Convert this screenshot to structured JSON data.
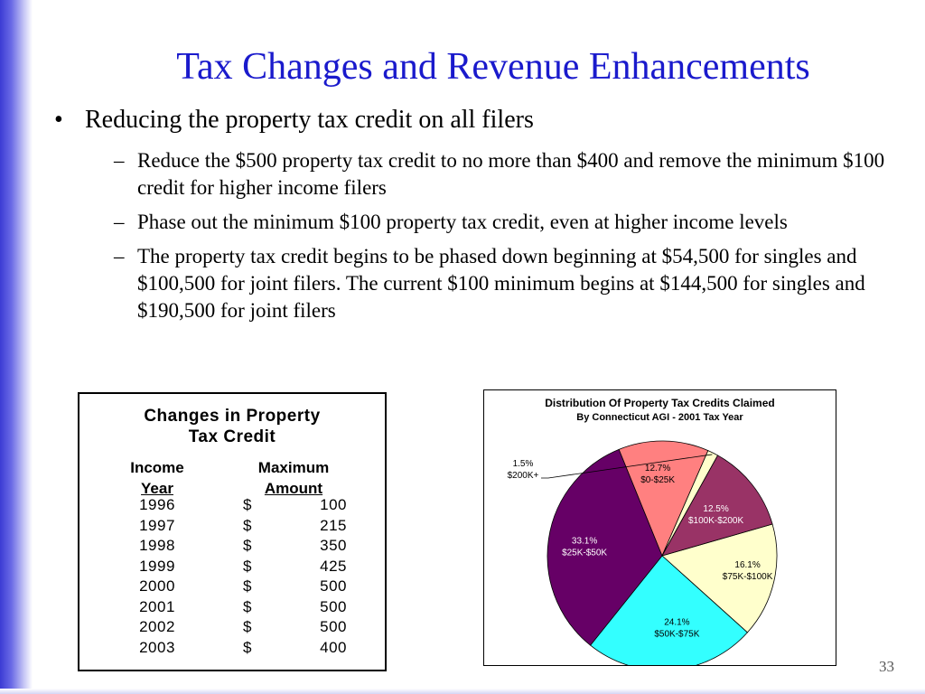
{
  "title": "Tax Changes and Revenue Enhancements",
  "bullet": {
    "symbol": "•",
    "text": "Reducing the property tax credit on all filers"
  },
  "sub_bullets": [
    {
      "dash": "–",
      "text": "Reduce the $500 property tax credit to no more than $400 and remove the minimum $100 credit for higher income filers"
    },
    {
      "dash": "–",
      "text": "Phase out the minimum $100 property tax credit, even at higher income levels"
    },
    {
      "dash": "–",
      "text": "The property tax credit begins to be phased down beginning at $54,500 for singles and $100,500 for joint filers.  The current $100 minimum begins at $144,500 for singles and $190,500 for joint filers"
    }
  ],
  "table": {
    "title": "Changes in Property Tax Credit",
    "col1_head_top": "Income",
    "col1_head_bottom": "Year",
    "col2_head_top": "Maximum",
    "col2_head_bottom": "Amount",
    "currency": "$",
    "rows": [
      {
        "year": "1996",
        "amount": "100"
      },
      {
        "year": "1997",
        "amount": "215"
      },
      {
        "year": "1998",
        "amount": "350"
      },
      {
        "year": "1999",
        "amount": "425"
      },
      {
        "year": "2000",
        "amount": "500"
      },
      {
        "year": "2001",
        "amount": "500"
      },
      {
        "year": "2002",
        "amount": "500"
      },
      {
        "year": "2003",
        "amount": "400"
      }
    ]
  },
  "chart_data": {
    "type": "pie",
    "title": "Distribution Of Property Tax Credits Claimed",
    "subtitle": "By Connecticut AGI - 2001 Tax Year",
    "slices": [
      {
        "label": "$75K-$100K",
        "value": 16.1,
        "value_label": "16.1%",
        "color": "#ffffcc"
      },
      {
        "label": "$50K-$75K",
        "value": 24.1,
        "value_label": "24.1%",
        "color": "#33ffff"
      },
      {
        "label": "$25K-$50K",
        "value": 33.1,
        "value_label": "33.1%",
        "color": "#660066"
      },
      {
        "label": "$0-$25K",
        "value": 12.7,
        "value_label": "12.7%",
        "color": "#ff8080"
      },
      {
        "label": "$200K+",
        "value": 1.5,
        "value_label": "1.5%",
        "color": "#ffffcc"
      },
      {
        "label": "$100K-$200K",
        "value": 12.5,
        "value_label": "12.5%",
        "color": "#993366"
      }
    ],
    "start_angle_deg": -16,
    "direction": "clockwise",
    "legend": "none"
  },
  "page_number": "33"
}
